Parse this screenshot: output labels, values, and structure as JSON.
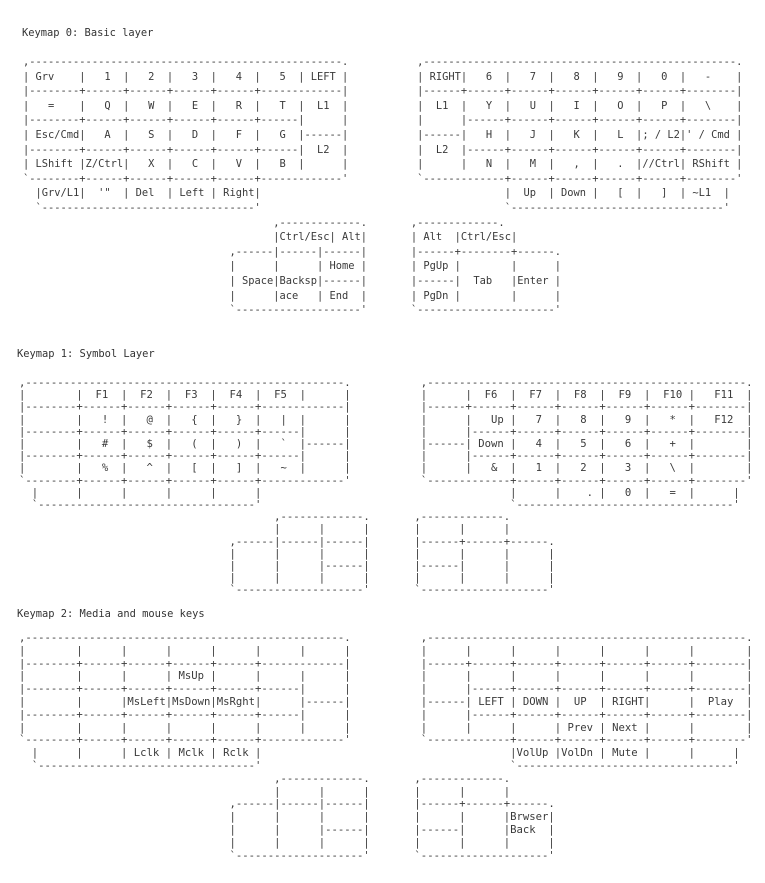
{
  "layers": [
    {
      "title": "Keymap 0: Basic layer",
      "lines": [
        ",--------------------------------------------------.           ,--------------------------------------------------.",
        "| Grv    |   1  |   2  |   3  |   4  |   5  | LEFT |           | RIGHT|   6  |   7  |   8  |   9  |   0  |   -    |",
        "|--------+------+------+------+------+-------------|           |------+------+------+------+------+------+--------|",
        "|   =    |   Q  |   W  |   E  |   R  |   T  |  L1  |           |  L1  |   Y  |   U  |   I  |   O  |   P  |   \\    |",
        "|--------+------+------+------+------+------|      |           |      |------+------+------+------+------+--------|",
        "| Esc/Cmd|   A  |   S  |   D  |   F  |   G  |------|           |------|   H  |   J  |   K  |   L  |; / L2|' / Cmd |",
        "|--------+------+------+------+------+------|  L2  |           |  L2  |------+------+------+------+------+--------|",
        "| LShift |Z/Ctrl|   X  |   C  |   V  |   B  |      |           |      |   N  |   M  |   ,  |   .  |//Ctrl| RShift |",
        "`--------+------+------+------+------+-------------'           `-------------+------+------+------+------+--------'",
        "  |Grv/L1|  '\"  | Del  | Left | Right|                                       |  Up  | Down |   [  |   ]  | ~L1  |",
        "  `----------------------------------'                                       `----------------------------------'",
        "                                        ,-------------.       ,-------------.",
        "                                        |Ctrl/Esc| Alt|       | Alt  |Ctrl/Esc|",
        "                                 ,------|------|------|       |------+--------+------.",
        "                                 |      |      | Home |       | PgUp |        |      |",
        "                                 | Space|Backsp|------|       |------|  Tab   |Enter |",
        "                                 |      |ace   | End  |       | PgDn |        |      |",
        "                                 `--------------------'       `----------------------'"
      ]
    },
    {
      "title": "Keymap 1: Symbol Layer",
      "lines": [
        ",--------------------------------------------------.           ,--------------------------------------------------.",
        "|        |  F1  |  F2  |  F3  |  F4  |  F5  |      |           |      |  F6  |  F7  |  F8  |  F9  |  F10 |   F11  |",
        "|--------+------+------+------+------+-------------|           |------+------+------+------+------+------+--------|",
        "|        |   !  |   @  |   {  |   }  |   |  |      |           |      |   Up |   7  |   8  |   9  |   *  |   F12  |",
        "|--------+------+------+------+------+------|      |           |      |------+------+------+------+------+--------|",
        "|        |   #  |   $  |   (  |   )  |   `  |------|           |------| Down |   4  |   5  |   6  |   +  |        |",
        "|--------+------+------+------+------+------|      |           |      |------+------+------+------+------+--------|",
        "|        |   %  |   ^  |   [  |   ]  |   ~  |      |           |      |   &  |   1  |   2  |   3  |   \\  |        |",
        "`--------+------+------+------+------+-------------'           `-------------+------+------+------+------+--------'",
        "  |      |      |      |      |      |                                       |      |    . |   0  |   =  |      |",
        "  `----------------------------------'                                       `----------------------------------'",
        "                                        ,-------------.       ,-------------.",
        "                                        |      |      |       |      |      |",
        "                                 ,------|------|------|       |------+------+------.",
        "                                 |      |      |      |       |      |      |      |",
        "                                 |      |      |------|       |------|      |      |",
        "                                 |      |      |      |       |      |      |      |",
        "                                 `--------------------'       `--------------------'"
      ]
    },
    {
      "title": "Keymap 2: Media and mouse keys",
      "lines": [
        ",--------------------------------------------------.           ,--------------------------------------------------.",
        "|        |      |      |      |      |      |      |           |      |      |      |      |      |      |        |",
        "|--------+------+------+------+------+-------------|           |------+------+------+------+------+------+--------|",
        "|        |      |      | MsUp |      |      |      |           |      |      |      |      |      |      |        |",
        "|--------+------+------+------+------+------|      |           |      |------+------+------+------+------+--------|",
        "|        |      |MsLeft|MsDown|MsRght|      |------|           |------| LEFT | DOWN |  UP  | RIGHT|      |  Play  |",
        "|--------+------+------+------+------+------|      |           |      |------+------+------+------+------+--------|",
        "|        |      |      |      |      |      |      |           |      |      |      | Prev | Next |      |        |",
        "`--------+------+------+------+------+-------------'           `-------------+------+------+------+------+--------'",
        "  |      |      | Lclk | Mclk | Rclk |                                       |VolUp |VolDn | Mute |      |      |",
        "  `----------------------------------'                                       `----------------------------------'",
        "                                        ,-------------.       ,-------------.",
        "                                        |      |      |       |      |      |",
        "                                 ,------|------|------|       |------+------+------.",
        "                                 |      |      |      |       |      |      |Brwser|",
        "                                 |      |      |------|       |------|      |Back  |",
        "                                 |      |      |      |       |      |      |      |",
        "                                 `--------------------'       `--------------------'"
      ]
    }
  ]
}
